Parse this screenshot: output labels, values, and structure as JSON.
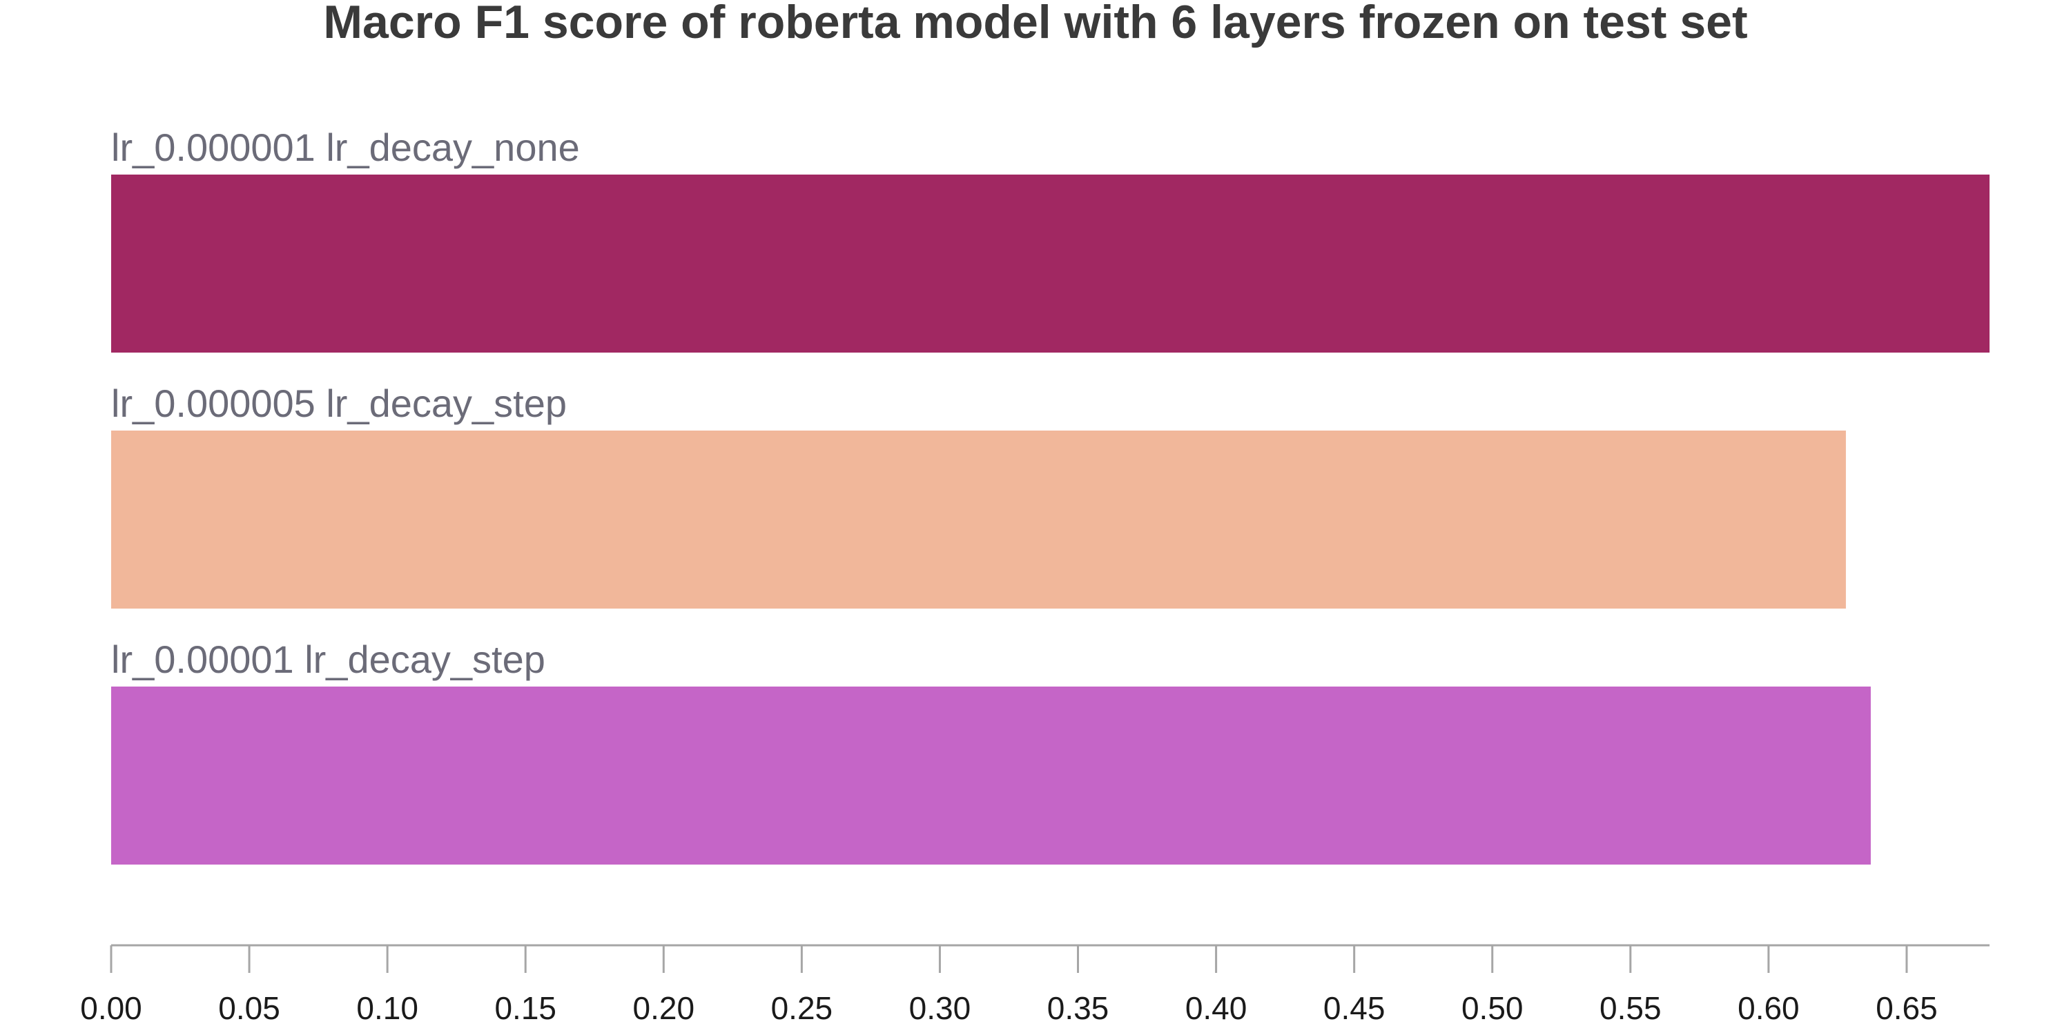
{
  "chart_data": {
    "type": "bar",
    "orientation": "horizontal",
    "title": "Macro F1 score of roberta model with 6 layers frozen on test set",
    "xlabel": "",
    "ylabel": "",
    "xlim": [
      0,
      0.68
    ],
    "grid": false,
    "legend": "none",
    "categories": [
      "lr_0.000001 lr_decay_none",
      "lr_0.000005 lr_decay_step",
      "lr_0.00001 lr_decay_step"
    ],
    "values": [
      0.68,
      0.628,
      0.637
    ],
    "colors": [
      "#a12862",
      "#f1b79a",
      "#c565c7"
    ],
    "ticks": [
      0.0,
      0.05,
      0.1,
      0.15,
      0.2,
      0.25,
      0.3,
      0.35,
      0.4,
      0.45,
      0.5,
      0.55,
      0.6,
      0.65
    ],
    "tick_labels": [
      "0.00",
      "0.05",
      "0.10",
      "0.15",
      "0.20",
      "0.25",
      "0.30",
      "0.35",
      "0.40",
      "0.45",
      "0.50",
      "0.55",
      "0.60",
      "0.65"
    ]
  }
}
